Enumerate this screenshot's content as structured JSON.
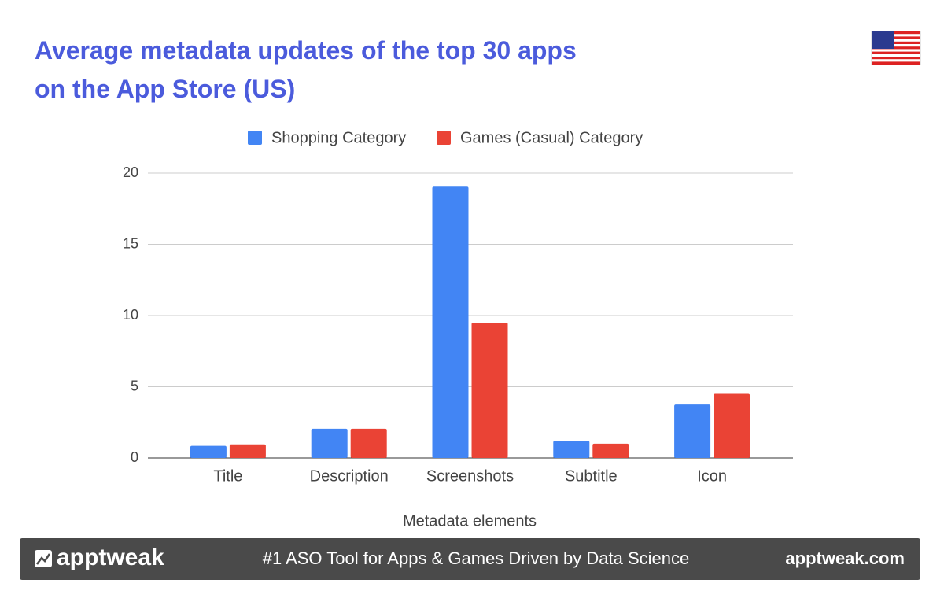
{
  "chart_data": {
    "type": "bar",
    "title": [
      "Average metadata updates of the top 30 apps",
      "on the App Store (US)"
    ],
    "x_label": "Metadata elements",
    "categories": [
      "Title",
      "Description",
      "Screenshots",
      "Subtitle",
      "Icon"
    ],
    "series": [
      {
        "name": "Shopping Category",
        "color": "#4285f4",
        "values": [
          0.85,
          2.05,
          19.05,
          1.2,
          3.75
        ]
      },
      {
        "name": "Games (Casual) Category",
        "color": "#ea4335",
        "values": [
          0.95,
          2.05,
          9.5,
          1.0,
          4.5
        ]
      }
    ],
    "ylim": [
      0,
      20
    ],
    "yticks": [
      0,
      5,
      10,
      15,
      20
    ],
    "grid": true,
    "legend": "top"
  },
  "footer": {
    "brand": "apptweak",
    "tagline": "#1 ASO Tool for Apps & Games Driven by Data Science",
    "url": "apptweak.com"
  }
}
